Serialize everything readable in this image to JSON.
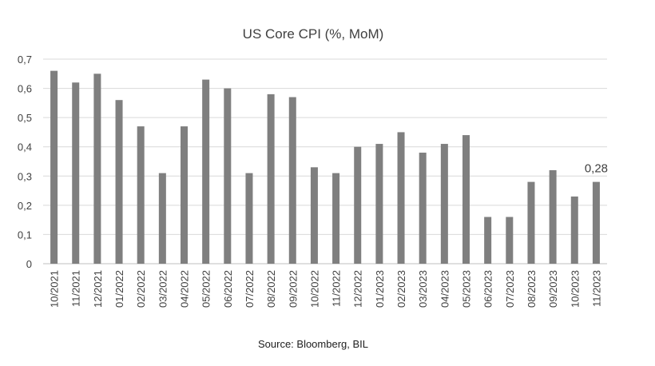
{
  "chart_data": {
    "type": "bar",
    "title": "US Core CPI (%, MoM)",
    "xlabel": "",
    "ylabel": "",
    "ylim": [
      0,
      0.7
    ],
    "yticks": [
      0,
      0.1,
      0.2,
      0.3,
      0.4,
      0.5,
      0.6,
      0.7
    ],
    "ytick_labels": [
      "0",
      "0,1",
      "0,2",
      "0,3",
      "0,4",
      "0,5",
      "0,6",
      "0,7"
    ],
    "categories": [
      "10/2021",
      "11/2021",
      "12/2021",
      "01/2022",
      "02/2022",
      "03/2022",
      "04/2022",
      "05/2022",
      "06/2022",
      "07/2022",
      "08/2022",
      "09/2022",
      "10/2022",
      "11/2022",
      "12/2022",
      "01/2023",
      "02/2023",
      "03/2023",
      "04/2023",
      "05/2023",
      "06/2023",
      "07/2023",
      "08/2023",
      "09/2023",
      "10/2023",
      "11/2023"
    ],
    "values": [
      0.66,
      0.62,
      0.65,
      0.56,
      0.47,
      0.31,
      0.47,
      0.63,
      0.6,
      0.31,
      0.58,
      0.57,
      0.33,
      0.31,
      0.4,
      0.41,
      0.45,
      0.38,
      0.41,
      0.44,
      0.16,
      0.16,
      0.28,
      0.32,
      0.23,
      0.28
    ],
    "bar_color": "#7f7f7f",
    "grid": true,
    "legend": "none",
    "annotations": [
      {
        "category": "11/2023",
        "text": "0,28"
      }
    ]
  },
  "source": "Source: Bloomberg, BIL"
}
